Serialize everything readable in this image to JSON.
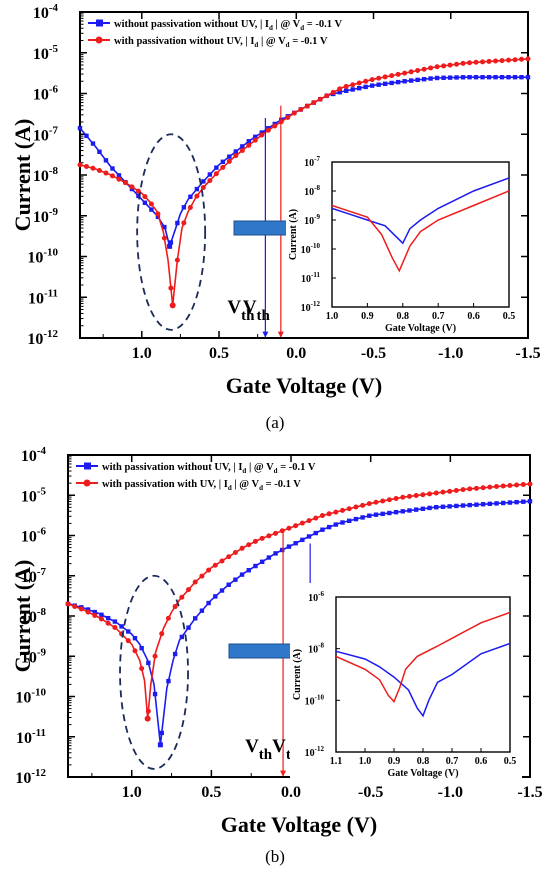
{
  "chart_data": [
    {
      "panel": "(a)",
      "type": "line",
      "xlabel": "Gate Voltage (V)",
      "ylabel": "Current (A)",
      "xlim": [
        1.4,
        -1.5
      ],
      "xticks": [
        1.0,
        0.5,
        0.0,
        -0.5,
        -1.0,
        -1.5
      ],
      "xtick_labels": [
        "1.0",
        "0.5",
        "0.0",
        "-0.5",
        "-1.0",
        "-1.5"
      ],
      "yscale": "log",
      "ylim_exp": [
        -12,
        -4
      ],
      "ytick_labels": [
        "10",
        "10",
        "10",
        "10",
        "10",
        "10",
        "10",
        "10",
        "10"
      ],
      "ytick_exps": [
        "-12",
        "-11",
        "-10",
        "-9",
        "-8",
        "-7",
        "-6",
        "-5",
        "-4"
      ],
      "legend_placement": "top-left",
      "series": [
        {
          "legend_main": "without passivation without UV, | I",
          "legend_sub1": "d",
          "legend_mid": " | @ V",
          "legend_sub2": "d",
          "legend_end": " = -0.1 V",
          "color": "#1c1cf0",
          "marker": "square",
          "x": [
            1.4,
            1.3,
            1.2,
            1.1,
            1.0,
            0.95,
            0.9,
            0.85,
            0.82,
            0.78,
            0.75,
            0.7,
            0.6,
            0.5,
            0.4,
            0.3,
            0.2,
            0.1,
            0.0,
            -0.1,
            -0.2,
            -0.3,
            -0.5,
            -0.7,
            -0.9,
            -1.1,
            -1.3,
            -1.5
          ],
          "y_exp": [
            -6.85,
            -7.3,
            -7.8,
            -8.2,
            -8.6,
            -8.8,
            -9.0,
            -9.3,
            -9.75,
            -9.3,
            -8.95,
            -8.6,
            -8.15,
            -7.75,
            -7.45,
            -7.15,
            -6.9,
            -6.65,
            -6.45,
            -6.25,
            -6.05,
            -5.95,
            -5.8,
            -5.7,
            -5.62,
            -5.6,
            -5.6,
            -5.6
          ]
        },
        {
          "legend_main": "with  passivation without UV, | I",
          "legend_sub1": "d",
          "legend_mid": " | @ V",
          "legend_sub2": "d",
          "legend_end": " = -0.1 V",
          "color": "#ee1c1c",
          "marker": "circle",
          "x": [
            1.4,
            1.3,
            1.2,
            1.1,
            1.0,
            0.95,
            0.9,
            0.86,
            0.83,
            0.8,
            0.77,
            0.74,
            0.7,
            0.65,
            0.6,
            0.5,
            0.4,
            0.3,
            0.2,
            0.1,
            0.0,
            -0.1,
            -0.2,
            -0.3,
            -0.5,
            -0.7,
            -0.9,
            -1.1,
            -1.3,
            -1.5
          ],
          "y_exp": [
            -7.75,
            -7.85,
            -8.0,
            -8.2,
            -8.45,
            -8.65,
            -8.9,
            -9.4,
            -10.1,
            -11.2,
            -10.1,
            -9.3,
            -8.9,
            -8.55,
            -8.3,
            -7.9,
            -7.55,
            -7.25,
            -6.95,
            -6.7,
            -6.45,
            -6.25,
            -6.05,
            -5.85,
            -5.65,
            -5.5,
            -5.35,
            -5.25,
            -5.2,
            -5.15
          ]
        }
      ],
      "vth_labels": [
        {
          "text": "V",
          "sub": "th",
          "color": "#1c1cf0",
          "x": 0.2
        },
        {
          "text": "V",
          "sub": "th",
          "color": "#ee1c1c",
          "x": 0.1
        }
      ],
      "inset": {
        "xlabel": "Gate Voltage (V)",
        "ylabel": "Current (A)",
        "xlim": [
          1.0,
          0.5
        ],
        "xticks": [
          1.0,
          0.9,
          0.8,
          0.7,
          0.6,
          0.5
        ],
        "xtick_labels": [
          "1.0",
          "0.9",
          "0.8",
          "0.7",
          "0.6",
          "0.5"
        ],
        "ylim_exp": [
          -12,
          -7
        ],
        "ytick_labels": [
          "10",
          "10",
          "10",
          "10",
          "10",
          "10"
        ],
        "ytick_exps": [
          "-12",
          "-11",
          "-10",
          "-9",
          "-8",
          "-7"
        ],
        "series": [
          {
            "color": "#1c1cf0",
            "x": [
              1.0,
              0.95,
              0.9,
              0.85,
              0.8,
              0.78,
              0.75,
              0.7,
              0.6,
              0.5
            ],
            "y_exp": [
              -8.6,
              -8.8,
              -9.0,
              -9.2,
              -9.8,
              -9.3,
              -9.0,
              -8.6,
              -8.0,
              -7.55
            ]
          },
          {
            "color": "#ee1c1c",
            "x": [
              1.0,
              0.95,
              0.9,
              0.86,
              0.83,
              0.81,
              0.78,
              0.75,
              0.7,
              0.6,
              0.5
            ],
            "y_exp": [
              -8.5,
              -8.7,
              -8.9,
              -9.5,
              -10.3,
              -10.75,
              -9.9,
              -9.4,
              -9.0,
              -8.5,
              -8.0
            ]
          }
        ]
      }
    },
    {
      "panel": "(b)",
      "type": "line",
      "xlabel": "Gate Voltage (V)",
      "ylabel": "Current (A)",
      "xlim": [
        1.4,
        -1.5
      ],
      "xticks": [
        1.0,
        0.5,
        0.0,
        -0.5,
        -1.0,
        -1.5
      ],
      "xtick_labels": [
        "1.0",
        "0.5",
        "0.0",
        "-0.5",
        "-1.0",
        "-1.5"
      ],
      "yscale": "log",
      "ylim_exp": [
        -12,
        -4
      ],
      "ytick_labels": [
        "10",
        "10",
        "10",
        "10",
        "10",
        "10",
        "10",
        "10",
        "10"
      ],
      "ytick_exps": [
        "-12",
        "-11",
        "-10",
        "-9",
        "-8",
        "-7",
        "-6",
        "-5",
        "-4"
      ],
      "legend_placement": "top-left",
      "series": [
        {
          "legend_main": "with passivation without UV, | I",
          "legend_sub1": "d",
          "legend_mid": " | @ V",
          "legend_sub2": "d",
          "legend_end": " = -0.1 V",
          "color": "#1c1cf0",
          "marker": "square",
          "x": [
            1.4,
            1.3,
            1.2,
            1.1,
            1.0,
            0.95,
            0.9,
            0.86,
            0.82,
            0.78,
            0.74,
            0.7,
            0.6,
            0.5,
            0.4,
            0.3,
            0.2,
            0.1,
            0.0,
            -0.1,
            -0.2,
            -0.3,
            -0.5,
            -0.7,
            -0.9,
            -1.1,
            -1.3,
            -1.5
          ],
          "y_exp": [
            -7.7,
            -7.8,
            -7.95,
            -8.15,
            -8.45,
            -8.7,
            -9.1,
            -9.7,
            -11.2,
            -9.8,
            -9.1,
            -8.6,
            -8.05,
            -7.6,
            -7.25,
            -6.95,
            -6.7,
            -6.45,
            -6.25,
            -6.05,
            -5.85,
            -5.7,
            -5.5,
            -5.4,
            -5.3,
            -5.25,
            -5.2,
            -5.15
          ]
        },
        {
          "legend_main": "with passivation with UV, | I",
          "legend_sub1": "d",
          "legend_mid": " | @ V",
          "legend_sub2": "d",
          "legend_end": " = -0.1 V",
          "color": "#ee1c1c",
          "marker": "circle",
          "x": [
            1.4,
            1.3,
            1.2,
            1.1,
            1.0,
            0.95,
            0.92,
            0.9,
            0.88,
            0.85,
            0.8,
            0.75,
            0.7,
            0.6,
            0.5,
            0.4,
            0.3,
            0.2,
            0.1,
            0.0,
            -0.1,
            -0.2,
            -0.3,
            -0.5,
            -0.7,
            -0.9,
            -1.1,
            -1.3,
            -1.5
          ],
          "y_exp": [
            -7.7,
            -7.85,
            -8.05,
            -8.3,
            -8.7,
            -9.1,
            -9.6,
            -10.55,
            -9.7,
            -8.9,
            -8.3,
            -7.9,
            -7.6,
            -7.15,
            -6.8,
            -6.55,
            -6.3,
            -6.1,
            -5.95,
            -5.8,
            -5.65,
            -5.5,
            -5.4,
            -5.2,
            -5.05,
            -4.95,
            -4.85,
            -4.78,
            -4.72
          ]
        }
      ],
      "vth_labels": [
        {
          "text": "V",
          "sub": "th",
          "color": "#ee1c1c",
          "x": 0.05
        },
        {
          "text": "V",
          "sub": "th",
          "color": "#1c1cf0",
          "x": -0.12
        }
      ],
      "inset": {
        "xlabel": "Gate Voltage (V)",
        "ylabel": "Current (A)",
        "xlim": [
          1.1,
          0.5
        ],
        "xticks": [
          1.1,
          1.0,
          0.9,
          0.8,
          0.7,
          0.6,
          0.5
        ],
        "xtick_labels": [
          "1.1",
          "1.0",
          "0.9",
          "0.8",
          "0.7",
          "0.6",
          "0.5"
        ],
        "ylim_exp": [
          -12,
          -6
        ],
        "ytick_labels": [
          "10",
          "10",
          "10",
          "10"
        ],
        "ytick_exps": [
          "-12",
          "-10",
          "-8",
          "-6"
        ],
        "series": [
          {
            "color": "#1c1cf0",
            "x": [
              1.1,
              1.0,
              0.95,
              0.9,
              0.85,
              0.82,
              0.8,
              0.78,
              0.75,
              0.7,
              0.6,
              0.5
            ],
            "y_exp": [
              -8.1,
              -8.4,
              -8.7,
              -9.1,
              -9.6,
              -10.3,
              -10.6,
              -10.0,
              -9.3,
              -9.0,
              -8.2,
              -7.8
            ]
          },
          {
            "color": "#ee1c1c",
            "x": [
              1.1,
              1.0,
              0.95,
              0.92,
              0.9,
              0.88,
              0.86,
              0.82,
              0.75,
              0.7,
              0.6,
              0.5
            ],
            "y_exp": [
              -8.3,
              -8.8,
              -9.2,
              -9.8,
              -10.05,
              -9.5,
              -8.8,
              -8.3,
              -7.9,
              -7.6,
              -7.0,
              -6.6
            ]
          }
        ]
      }
    }
  ]
}
